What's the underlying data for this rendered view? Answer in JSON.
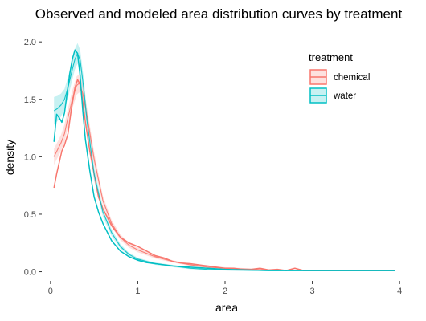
{
  "chart_data": {
    "type": "line",
    "title": "Observed and modeled area distribution curves by treatment",
    "xlabel": "area",
    "ylabel": "density",
    "xlim": [
      -0.1,
      4.1
    ],
    "ylim": [
      -0.08,
      2.12
    ],
    "x_ticks": [
      0,
      1,
      2,
      3,
      4
    ],
    "x_tick_labels": [
      "0",
      "1",
      "2",
      "3",
      "4"
    ],
    "y_ticks": [
      0.0,
      0.5,
      1.0,
      1.5,
      2.0
    ],
    "y_tick_labels": [
      "0.0",
      "0.5",
      "1.0",
      "1.5",
      "2.0"
    ],
    "grid": false,
    "legend": {
      "title": "treatment",
      "position": "top-right"
    },
    "series": [
      {
        "name": "chemical",
        "color": "#f8766d",
        "fill": "#f8766d",
        "observed": {
          "x": [
            0.04,
            0.07,
            0.1,
            0.13,
            0.16,
            0.2,
            0.24,
            0.28,
            0.31,
            0.34,
            0.37,
            0.4,
            0.45,
            0.5,
            0.55,
            0.6,
            0.7,
            0.8,
            0.9,
            1.0,
            1.1,
            1.2,
            1.3,
            1.4,
            1.5,
            1.6,
            1.7,
            1.8,
            1.9,
            2.0,
            2.1,
            2.2,
            2.3,
            2.4,
            2.5,
            2.6,
            2.7,
            2.8,
            2.9,
            3.0,
            3.2,
            3.4,
            3.6,
            3.8,
            3.95
          ],
          "y": [
            0.73,
            0.85,
            0.95,
            1.05,
            1.1,
            1.2,
            1.42,
            1.6,
            1.67,
            1.63,
            1.48,
            1.3,
            1.05,
            0.85,
            0.65,
            0.55,
            0.4,
            0.3,
            0.25,
            0.22,
            0.18,
            0.14,
            0.12,
            0.09,
            0.075,
            0.07,
            0.06,
            0.05,
            0.04,
            0.03,
            0.03,
            0.02,
            0.02,
            0.03,
            0.015,
            0.02,
            0.01,
            0.03,
            0.01,
            0.01,
            0.01,
            0.01,
            0.01,
            0.01,
            0.01
          ]
        },
        "modeled": {
          "x": [
            0.04,
            0.08,
            0.12,
            0.16,
            0.2,
            0.25,
            0.3,
            0.33,
            0.37,
            0.42,
            0.5,
            0.6,
            0.7,
            0.8,
            0.9,
            1.0,
            1.2,
            1.4,
            1.6,
            1.8,
            2.0,
            2.5,
            3.0,
            3.5,
            3.95
          ],
          "y": [
            1.0,
            1.06,
            1.12,
            1.2,
            1.34,
            1.5,
            1.62,
            1.64,
            1.55,
            1.35,
            0.98,
            0.62,
            0.42,
            0.3,
            0.23,
            0.19,
            0.13,
            0.09,
            0.06,
            0.04,
            0.03,
            0.015,
            0.01,
            0.01,
            0.01
          ],
          "band": [
            0.07,
            0.07,
            0.07,
            0.08,
            0.08,
            0.08,
            0.08,
            0.08,
            0.08,
            0.07,
            0.06,
            0.04,
            0.03,
            0.025,
            0.02,
            0.02,
            0.015,
            0.01,
            0.01,
            0.01,
            0.01,
            0.005,
            0.005,
            0.005,
            0.005
          ]
        }
      },
      {
        "name": "water",
        "color": "#00bfc4",
        "fill": "#00bfc4",
        "observed": {
          "x": [
            0.04,
            0.07,
            0.1,
            0.13,
            0.16,
            0.19,
            0.22,
            0.25,
            0.28,
            0.31,
            0.34,
            0.37,
            0.4,
            0.45,
            0.5,
            0.55,
            0.6,
            0.7,
            0.8,
            0.9,
            1.0,
            1.1,
            1.2,
            1.4,
            1.6,
            1.8,
            2.0,
            2.5,
            3.0,
            3.5,
            3.95
          ],
          "y": [
            1.13,
            1.37,
            1.34,
            1.3,
            1.38,
            1.55,
            1.72,
            1.85,
            1.93,
            1.9,
            1.7,
            1.4,
            1.15,
            0.88,
            0.65,
            0.52,
            0.42,
            0.27,
            0.18,
            0.13,
            0.1,
            0.08,
            0.07,
            0.05,
            0.04,
            0.03,
            0.02,
            0.01,
            0.01,
            0.01,
            0.01
          ]
        },
        "modeled": {
          "x": [
            0.04,
            0.08,
            0.12,
            0.16,
            0.2,
            0.24,
            0.28,
            0.31,
            0.34,
            0.38,
            0.42,
            0.5,
            0.6,
            0.7,
            0.8,
            0.9,
            1.0,
            1.2,
            1.4,
            1.6,
            1.8,
            2.0,
            2.5,
            3.0,
            3.5,
            3.95
          ],
          "y": [
            1.4,
            1.42,
            1.45,
            1.5,
            1.6,
            1.73,
            1.85,
            1.9,
            1.84,
            1.6,
            1.3,
            0.85,
            0.52,
            0.34,
            0.22,
            0.15,
            0.11,
            0.07,
            0.05,
            0.03,
            0.02,
            0.015,
            0.01,
            0.01,
            0.01,
            0.01
          ],
          "band": [
            0.12,
            0.11,
            0.1,
            0.09,
            0.09,
            0.09,
            0.09,
            0.09,
            0.09,
            0.09,
            0.08,
            0.06,
            0.04,
            0.03,
            0.02,
            0.015,
            0.012,
            0.01,
            0.01,
            0.008,
            0.006,
            0.005,
            0.004,
            0.004,
            0.004,
            0.004
          ]
        }
      }
    ]
  }
}
